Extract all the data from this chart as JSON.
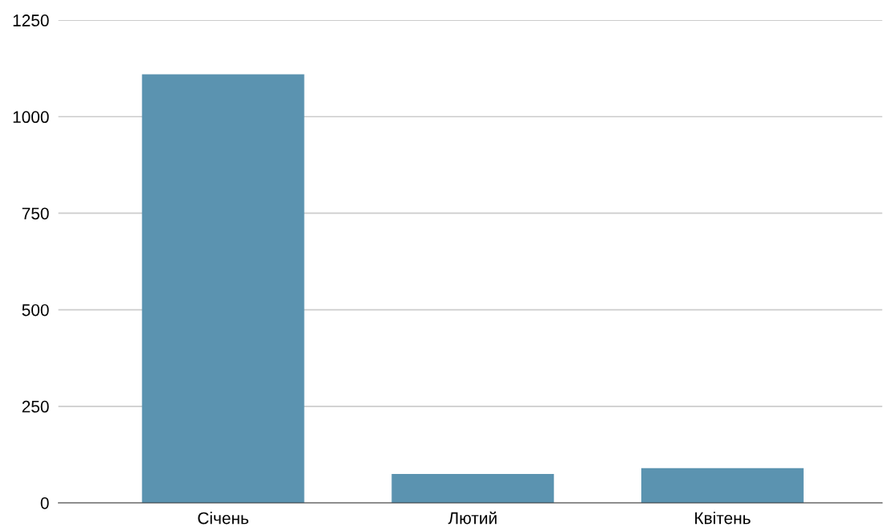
{
  "chart_data": {
    "type": "bar",
    "categories": [
      "Січень",
      "Лютий",
      "Квітень"
    ],
    "values": [
      1110,
      75,
      90
    ],
    "color": "#5b93b0",
    "ylim": [
      0,
      1250
    ],
    "yticks": [
      0,
      250,
      500,
      750,
      1000,
      1250
    ],
    "grid": "y",
    "legend": false
  }
}
